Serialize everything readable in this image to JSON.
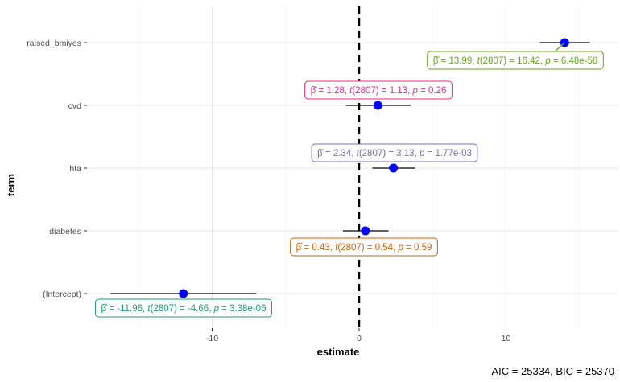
{
  "chart_data": {
    "type": "forest",
    "xlabel": "estimate",
    "ylabel": "term",
    "xlim": [
      -18,
      18
    ],
    "x_ticks": [
      -10,
      0,
      10
    ],
    "x_tick_labels": [
      "-10",
      "0",
      "10"
    ],
    "grid": true,
    "reference_line": 0,
    "caption": "AIC = 25334, BIC = 25370",
    "point_color": "#0000ff",
    "terms": [
      {
        "term": "raised_bmiyes",
        "estimate": 13.99,
        "ci_low": 12.3,
        "ci_high": 15.7,
        "color": "#66a61e",
        "label": {
          "estimate": "13.99",
          "df": "2807",
          "t": "16.42",
          "p": "6.48e-58"
        }
      },
      {
        "term": "cvd",
        "estimate": 1.28,
        "ci_low": -0.9,
        "ci_high": 3.5,
        "color": "#e7298a",
        "label": {
          "estimate": "1.28",
          "df": "2807",
          "t": "1.13",
          "p": "0.26"
        }
      },
      {
        "term": "hta",
        "estimate": 2.34,
        "ci_low": 0.9,
        "ci_high": 3.8,
        "color": "#7570b3",
        "label": {
          "estimate": "2.34",
          "df": "2807",
          "t": "3.13",
          "p": "1.77e-03"
        }
      },
      {
        "term": "diabetes",
        "estimate": 0.43,
        "ci_low": -1.1,
        "ci_high": 2.0,
        "color": "#d95f02",
        "label": {
          "estimate": "0.43",
          "df": "2807",
          "t": "0.54",
          "p": "0.59"
        }
      },
      {
        "term": "(Intercept)",
        "estimate": -11.96,
        "ci_low": -16.9,
        "ci_high": -7.0,
        "color": "#1b9e77",
        "label": {
          "estimate": "-11.96",
          "df": "2807",
          "t": "-4.66",
          "p": "3.38e-06"
        }
      }
    ]
  }
}
